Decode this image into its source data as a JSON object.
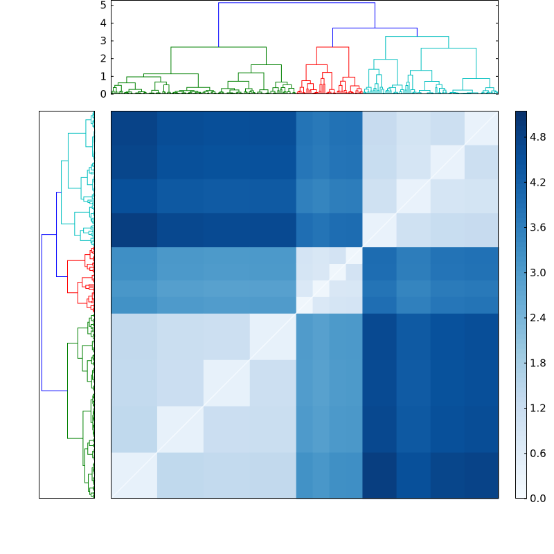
{
  "chart_data": [
    {
      "type": "dendrogram",
      "orientation": "top",
      "ylim": [
        0,
        5.3
      ],
      "y_ticks": [
        0,
        1,
        2,
        3,
        4,
        5
      ],
      "y_tick_labels": [
        "0",
        "1",
        "2",
        "3",
        "4",
        "5"
      ],
      "leaf_count": 280,
      "color_threshold": 3.2,
      "clusters": [
        {
          "color": "#008000",
          "leaf_range": [
            0,
            134
          ],
          "top_height": 2.65
        },
        {
          "color": "#ff0000",
          "leaf_range": [
            134,
            182
          ],
          "top_height": 2.65
        },
        {
          "color": "#00bfbf",
          "leaf_range": [
            182,
            280
          ],
          "top_height": 3.25
        }
      ],
      "root_links": [
        {
          "color": "#0000ff",
          "left": "red",
          "right": "cyan",
          "height": 3.72
        },
        {
          "color": "#0000ff",
          "left": "green",
          "right": "red+cyan",
          "height": 5.15
        }
      ]
    },
    {
      "type": "dendrogram",
      "orientation": "left",
      "leaf_count": 280,
      "clusters": [
        {
          "color": "#00bfbf",
          "position": "top"
        },
        {
          "color": "#ff0000",
          "position": "middle"
        },
        {
          "color": "#008000",
          "position": "bottom"
        }
      ],
      "root_color": "#0000ff"
    },
    {
      "type": "heatmap",
      "colormap": "Blues",
      "vmin": 0,
      "vmax": 5.15,
      "block_order": [
        "green",
        "red",
        "cyan"
      ],
      "block_fractions": [
        0.478,
        0.171,
        0.351
      ],
      "mean_distance": [
        [
          1.2,
          2.9,
          4.5
        ],
        [
          2.9,
          0.6,
          3.6
        ],
        [
          4.5,
          3.6,
          1.0
        ]
      ]
    },
    {
      "type": "colorbar",
      "ticks": [
        0.0,
        0.6,
        1.2,
        1.8,
        2.4,
        3.0,
        3.6,
        4.2,
        4.8
      ],
      "tick_labels": [
        "0.0",
        "0.6",
        "1.2",
        "1.8",
        "2.4",
        "3.0",
        "3.6",
        "4.2",
        "4.8"
      ],
      "range": [
        0,
        5.15
      ]
    }
  ]
}
